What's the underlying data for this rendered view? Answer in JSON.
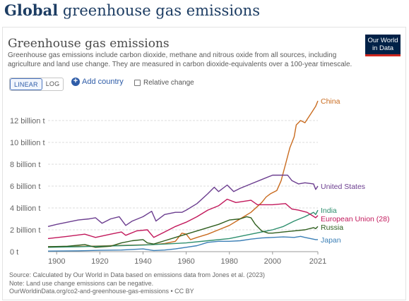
{
  "page": {
    "heading_bold": "Global",
    "heading_rest": " greenhouse gas emissions"
  },
  "card": {
    "title": "Greenhouse gas emissions",
    "subtitle": "Greenhouse gas emissions include carbon dioxide, methane and nitrous oxide from all sources, including agriculture and land use change. They are measured in carbon dioxide-equivalents over a 100-year timescale.",
    "logo_line1": "Our World",
    "logo_line2": "in Data",
    "controls": {
      "linear_label": "LINEAR",
      "log_label": "LOG",
      "add_country_label": "Add country",
      "relative_label": "Relative change"
    },
    "footer": {
      "source": "Source: Calculated by Our World in Data based on emissions data from Jones et al. (2023)",
      "note": "Note: Land use change emissions can be negative.",
      "url": "OurWorldinData.org/co2-and-greenhouse-gas-emissions • CC BY"
    }
  },
  "chart_data": {
    "type": "line",
    "x_ticks": [
      1900,
      1920,
      1940,
      1960,
      1980,
      2000,
      2021
    ],
    "y_ticks": [
      0,
      2,
      4,
      6,
      8,
      10,
      12
    ],
    "y_tick_labels": [
      "0 t",
      "2 billion t",
      "4 billion t",
      "6 billion t",
      "8 billion t",
      "10 billion t",
      "12 billion t"
    ],
    "xlim": [
      1896,
      2021
    ],
    "ylim": [
      0,
      14
    ],
    "unit": "billion t",
    "grid": true,
    "series": [
      {
        "name": "China",
        "color": "#c96b1f",
        "points": [
          [
            1896,
            0.45
          ],
          [
            1905,
            0.48
          ],
          [
            1915,
            0.5
          ],
          [
            1925,
            0.55
          ],
          [
            1935,
            0.6
          ],
          [
            1945,
            0.65
          ],
          [
            1950,
            0.75
          ],
          [
            1955,
            0.95
          ],
          [
            1958,
            1.7
          ],
          [
            1960,
            1.6
          ],
          [
            1962,
            1.1
          ],
          [
            1965,
            1.3
          ],
          [
            1970,
            1.6
          ],
          [
            1975,
            2.0
          ],
          [
            1980,
            2.4
          ],
          [
            1985,
            3.0
          ],
          [
            1990,
            3.6
          ],
          [
            1995,
            4.5
          ],
          [
            1997,
            5.0
          ],
          [
            1999,
            5.3
          ],
          [
            2002,
            5.6
          ],
          [
            2004,
            6.5
          ],
          [
            2006,
            8.0
          ],
          [
            2008,
            9.5
          ],
          [
            2010,
            10.5
          ],
          [
            2011,
            11.6
          ],
          [
            2013,
            12.0
          ],
          [
            2015,
            11.8
          ],
          [
            2016,
            12.1
          ],
          [
            2018,
            12.7
          ],
          [
            2020,
            13.3
          ],
          [
            2021,
            13.8
          ]
        ]
      },
      {
        "name": "United States",
        "color": "#6b3d8f",
        "points": [
          [
            1896,
            2.3
          ],
          [
            1900,
            2.5
          ],
          [
            1905,
            2.7
          ],
          [
            1910,
            2.9
          ],
          [
            1915,
            3.0
          ],
          [
            1918,
            3.1
          ],
          [
            1921,
            2.6
          ],
          [
            1925,
            3.0
          ],
          [
            1929,
            3.2
          ],
          [
            1932,
            2.4
          ],
          [
            1935,
            2.8
          ],
          [
            1940,
            3.2
          ],
          [
            1944,
            3.7
          ],
          [
            1946,
            2.8
          ],
          [
            1950,
            3.4
          ],
          [
            1955,
            3.6
          ],
          [
            1958,
            3.6
          ],
          [
            1960,
            3.8
          ],
          [
            1965,
            4.4
          ],
          [
            1970,
            5.3
          ],
          [
            1973,
            5.9
          ],
          [
            1975,
            5.5
          ],
          [
            1979,
            6.1
          ],
          [
            1982,
            5.5
          ],
          [
            1985,
            5.8
          ],
          [
            1990,
            6.2
          ],
          [
            1995,
            6.6
          ],
          [
            2000,
            7.0
          ],
          [
            2005,
            7.0
          ],
          [
            2007,
            7.0
          ],
          [
            2009,
            6.5
          ],
          [
            2012,
            6.2
          ],
          [
            2015,
            6.3
          ],
          [
            2019,
            6.2
          ],
          [
            2020,
            5.7
          ],
          [
            2021,
            6.0
          ]
        ]
      },
      {
        "name": "India",
        "color": "#2e8f6e",
        "points": [
          [
            1896,
            0.4
          ],
          [
            1910,
            0.45
          ],
          [
            1920,
            0.5
          ],
          [
            1930,
            0.55
          ],
          [
            1940,
            0.6
          ],
          [
            1950,
            0.7
          ],
          [
            1960,
            0.8
          ],
          [
            1970,
            1.0
          ],
          [
            1980,
            1.2
          ],
          [
            1990,
            1.6
          ],
          [
            2000,
            2.0
          ],
          [
            2005,
            2.3
          ],
          [
            2010,
            2.8
          ],
          [
            2015,
            3.2
          ],
          [
            2019,
            3.6
          ],
          [
            2020,
            3.4
          ],
          [
            2021,
            3.8
          ]
        ]
      },
      {
        "name": "European Union (28)",
        "color": "#c2185b",
        "points": [
          [
            1896,
            1.2
          ],
          [
            1905,
            1.4
          ],
          [
            1913,
            1.6
          ],
          [
            1918,
            1.3
          ],
          [
            1925,
            1.6
          ],
          [
            1930,
            1.8
          ],
          [
            1932,
            1.5
          ],
          [
            1937,
            1.9
          ],
          [
            1942,
            2.0
          ],
          [
            1945,
            1.3
          ],
          [
            1950,
            1.8
          ],
          [
            1955,
            2.3
          ],
          [
            1960,
            2.7
          ],
          [
            1965,
            3.2
          ],
          [
            1970,
            3.8
          ],
          [
            1975,
            4.2
          ],
          [
            1979,
            4.8
          ],
          [
            1983,
            4.5
          ],
          [
            1990,
            4.7
          ],
          [
            1993,
            4.3
          ],
          [
            2000,
            4.3
          ],
          [
            2006,
            4.4
          ],
          [
            2009,
            3.9
          ],
          [
            2012,
            3.8
          ],
          [
            2016,
            3.6
          ],
          [
            2020,
            3.1
          ],
          [
            2021,
            3.3
          ]
        ]
      },
      {
        "name": "Russia",
        "color": "#2f5e1e",
        "points": [
          [
            1896,
            0.45
          ],
          [
            1905,
            0.5
          ],
          [
            1913,
            0.65
          ],
          [
            1918,
            0.4
          ],
          [
            1925,
            0.5
          ],
          [
            1930,
            0.8
          ],
          [
            1935,
            1.0
          ],
          [
            1940,
            1.1
          ],
          [
            1942,
            0.8
          ],
          [
            1945,
            0.7
          ],
          [
            1950,
            1.0
          ],
          [
            1955,
            1.3
          ],
          [
            1960,
            1.6
          ],
          [
            1965,
            1.9
          ],
          [
            1970,
            2.2
          ],
          [
            1975,
            2.5
          ],
          [
            1980,
            2.9
          ],
          [
            1985,
            3.0
          ],
          [
            1988,
            3.2
          ],
          [
            1990,
            3.1
          ],
          [
            1992,
            2.5
          ],
          [
            1995,
            1.9
          ],
          [
            1998,
            1.7
          ],
          [
            2000,
            1.7
          ],
          [
            2005,
            1.8
          ],
          [
            2010,
            1.9
          ],
          [
            2015,
            2.0
          ],
          [
            2019,
            2.2
          ],
          [
            2020,
            2.1
          ],
          [
            2021,
            2.3
          ]
        ]
      },
      {
        "name": "Japan",
        "color": "#3b7fb6",
        "points": [
          [
            1896,
            0.05
          ],
          [
            1910,
            0.08
          ],
          [
            1920,
            0.12
          ],
          [
            1930,
            0.15
          ],
          [
            1940,
            0.25
          ],
          [
            1945,
            0.1
          ],
          [
            1950,
            0.15
          ],
          [
            1955,
            0.25
          ],
          [
            1960,
            0.4
          ],
          [
            1965,
            0.55
          ],
          [
            1970,
            0.85
          ],
          [
            1975,
            0.95
          ],
          [
            1980,
            0.95
          ],
          [
            1985,
            1.0
          ],
          [
            1990,
            1.15
          ],
          [
            1995,
            1.25
          ],
          [
            2000,
            1.3
          ],
          [
            2005,
            1.35
          ],
          [
            2010,
            1.3
          ],
          [
            2013,
            1.4
          ],
          [
            2015,
            1.3
          ],
          [
            2020,
            1.1
          ],
          [
            2021,
            1.1
          ]
        ]
      }
    ]
  }
}
